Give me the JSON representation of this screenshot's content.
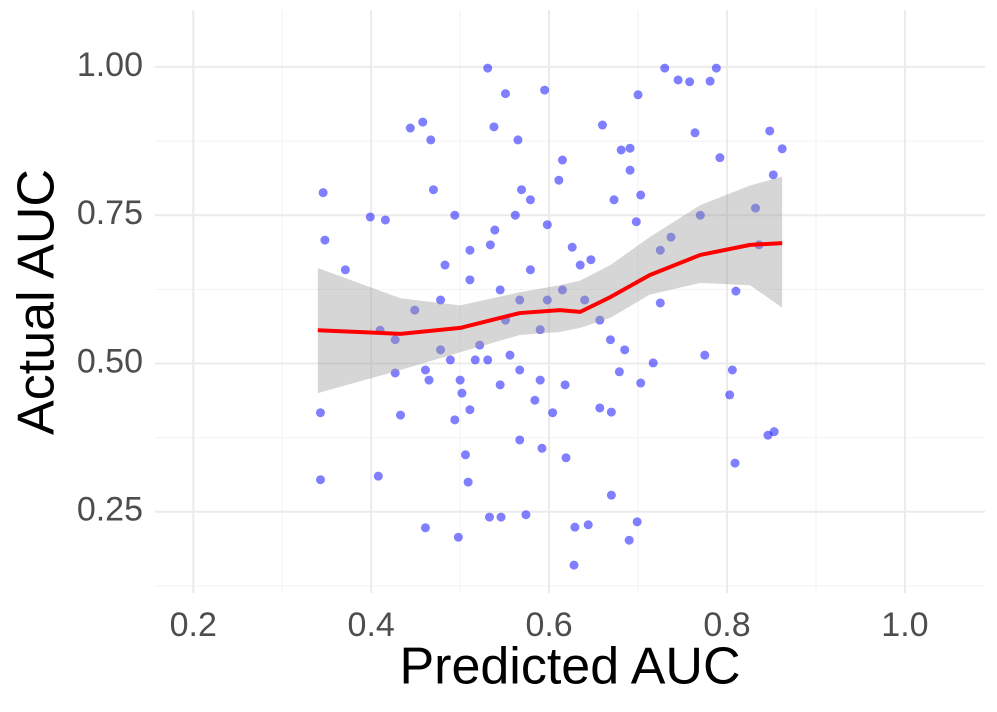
{
  "chart_data": {
    "type": "scatter",
    "x_label": "Predicted AUC",
    "y_label": "Actual AUC",
    "xlim": [
      0.157,
      1.09
    ],
    "ylim": [
      0.113,
      1.096
    ],
    "xticks": [
      0.2,
      0.4,
      0.6,
      0.8,
      {
        "value": 1.0,
        "label": "1.0"
      }
    ],
    "yticks": [
      0.25,
      {
        "value": 0.5,
        "label": "0.50"
      },
      0.75,
      {
        "value": 1.0,
        "label": "1.00"
      }
    ],
    "minor_xticks": [
      0.3,
      0.5,
      0.7,
      0.9
    ],
    "minor_yticks": [
      0.125,
      0.375,
      0.625,
      0.875
    ],
    "grid": true,
    "color": "#0000ff",
    "x": [
      0.346,
      0.348,
      0.343,
      0.343,
      0.371,
      0.399,
      0.416,
      0.408,
      0.427,
      0.433,
      0.444,
      0.458,
      0.467,
      0.47,
      0.461,
      0.498,
      0.502,
      0.506,
      0.509,
      0.534,
      0.531,
      0.538,
      0.551,
      0.565,
      0.569,
      0.533,
      0.546,
      0.574,
      0.595,
      0.615,
      0.611,
      0.598,
      0.579,
      0.567,
      0.59,
      0.59,
      0.592,
      0.619,
      0.629,
      0.628,
      0.644,
      0.66,
      0.673,
      0.681,
      0.691,
      0.7,
      0.691,
      0.703,
      0.698,
      0.73,
      0.745,
      0.758,
      0.781,
      0.788,
      0.764,
      0.792,
      0.657,
      0.67,
      0.67,
      0.69,
      0.699,
      0.679,
      0.703,
      0.717,
      0.725,
      0.737,
      0.77,
      0.775,
      0.803,
      0.806,
      0.809,
      0.81,
      0.832,
      0.836,
      0.848,
      0.852,
      0.862,
      0.846,
      0.853,
      0.725,
      0.635,
      0.598,
      0.551,
      0.522,
      0.517,
      0.5,
      0.489,
      0.478,
      0.461,
      0.449,
      0.478,
      0.511,
      0.545,
      0.556,
      0.567,
      0.584,
      0.604,
      0.618,
      0.64,
      0.657,
      0.669,
      0.685,
      0.41,
      0.427,
      0.465,
      0.494,
      0.511,
      0.567,
      0.545,
      0.531,
      0.539,
      0.562,
      0.579,
      0.626,
      0.647,
      0.615,
      0.511,
      0.494,
      0.483
    ],
    "y": [
      0.788,
      0.708,
      0.417,
      0.304,
      0.658,
      0.747,
      0.742,
      0.31,
      0.54,
      0.413,
      0.897,
      0.907,
      0.877,
      0.793,
      0.223,
      0.207,
      0.45,
      0.346,
      0.3,
      0.7,
      0.998,
      0.899,
      0.955,
      0.877,
      0.793,
      0.241,
      0.241,
      0.245,
      0.961,
      0.843,
      0.809,
      0.734,
      0.658,
      0.607,
      0.557,
      0.472,
      0.357,
      0.341,
      0.224,
      0.16,
      0.228,
      0.902,
      0.776,
      0.86,
      0.863,
      0.953,
      0.826,
      0.784,
      0.739,
      0.998,
      0.978,
      0.975,
      0.976,
      0.998,
      0.889,
      0.847,
      0.425,
      0.418,
      0.278,
      0.202,
      0.233,
      0.486,
      0.467,
      0.501,
      0.602,
      0.713,
      0.75,
      0.514,
      0.447,
      0.489,
      0.332,
      0.622,
      0.762,
      0.7,
      0.892,
      0.818,
      0.862,
      0.379,
      0.385,
      0.691,
      0.666,
      0.607,
      0.573,
      0.531,
      0.506,
      0.472,
      0.506,
      0.523,
      0.489,
      0.59,
      0.607,
      0.641,
      0.624,
      0.514,
      0.489,
      0.438,
      0.417,
      0.464,
      0.607,
      0.573,
      0.54,
      0.523,
      0.556,
      0.484,
      0.472,
      0.405,
      0.422,
      0.371,
      0.464,
      0.506,
      0.725,
      0.75,
      0.776,
      0.696,
      0.675,
      0.624,
      0.691,
      0.75,
      0.666
    ],
    "smooth": {
      "color": "#ff0000",
      "band_color": "#999999",
      "x": [
        0.34,
        0.433,
        0.5,
        0.567,
        0.612,
        0.635,
        0.669,
        0.713,
        0.77,
        0.826,
        0.862
      ],
      "y": [
        0.556,
        0.55,
        0.56,
        0.585,
        0.59,
        0.587,
        0.612,
        0.649,
        0.683,
        0.7,
        0.703
      ],
      "upper": [
        0.661,
        0.61,
        0.598,
        0.62,
        0.632,
        0.64,
        0.666,
        0.713,
        0.767,
        0.8,
        0.815
      ],
      "lower": [
        0.45,
        0.489,
        0.519,
        0.548,
        0.553,
        0.56,
        0.577,
        0.616,
        0.636,
        0.632,
        0.594
      ]
    }
  }
}
